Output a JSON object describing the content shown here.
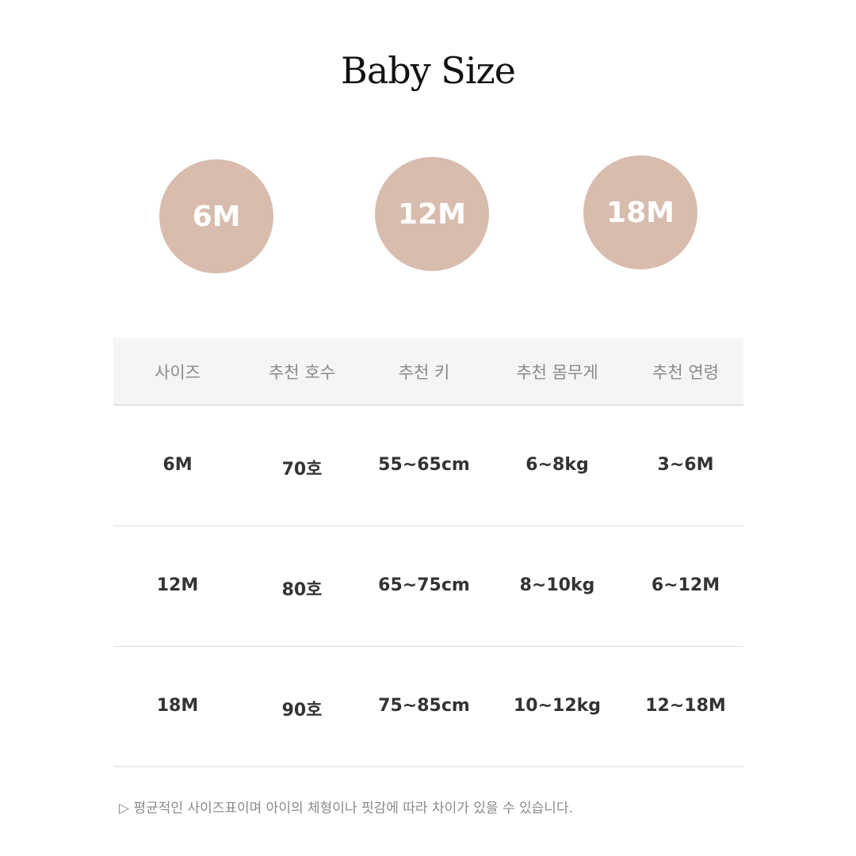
{
  "title": "Baby Size",
  "badges": [
    "6M",
    "12M",
    "18M"
  ],
  "badge_color": "#d8bcae",
  "table": {
    "headers": [
      "사이즈",
      "추천 호수",
      "추천 키",
      "추천 몸무게",
      "추천 연령"
    ],
    "rows": [
      [
        "6M",
        "70호",
        "55~65cm",
        "6~8kg",
        "3~6M"
      ],
      [
        "12M",
        "80호",
        "65~75cm",
        "8~10kg",
        "6~12M"
      ],
      [
        "18M",
        "90호",
        "75~85cm",
        "10~12kg",
        "12~18M"
      ]
    ]
  },
  "note": "▷ 평균적인 사이즈표이며 아이의 체형이나 핏감에 따라 차이가 있을 수 있습니다."
}
